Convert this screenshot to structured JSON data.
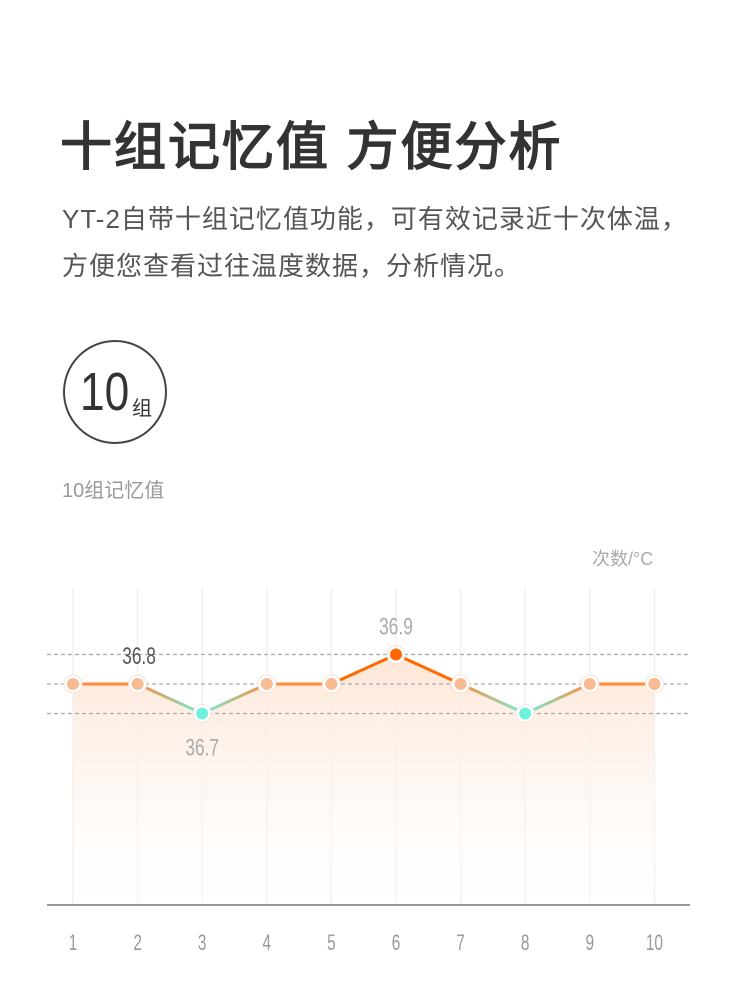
{
  "header": {
    "title": "十组记忆值 方便分析",
    "description": "YT-2自带十组记忆值功能，可有效记录近十次体温，方便您查看过往温度数据，分析情况。"
  },
  "badge": {
    "number": "10",
    "unit": "组",
    "caption": "10组记忆值"
  },
  "chart_data": {
    "type": "line",
    "title": "",
    "unit_label": "次数/°C",
    "x": [
      "1",
      "2",
      "3",
      "4",
      "5",
      "6",
      "7",
      "8",
      "9",
      "10"
    ],
    "values": [
      36.8,
      36.8,
      36.7,
      36.8,
      36.8,
      36.9,
      36.8,
      36.7,
      36.8,
      36.8
    ],
    "data_labels": [
      {
        "index": 1,
        "text": "36.8"
      },
      {
        "index": 2,
        "text": "36.7"
      },
      {
        "index": 5,
        "text": "36.9"
      }
    ],
    "reference_lines": [
      36.9,
      36.8,
      36.7
    ],
    "grid": true,
    "area_fill": true,
    "colors": {
      "line": "#ff8a3a",
      "max": "#ff6a00",
      "min": "#6ef2dc",
      "normal": "#f9bb92",
      "area": "#fde6d6"
    }
  }
}
